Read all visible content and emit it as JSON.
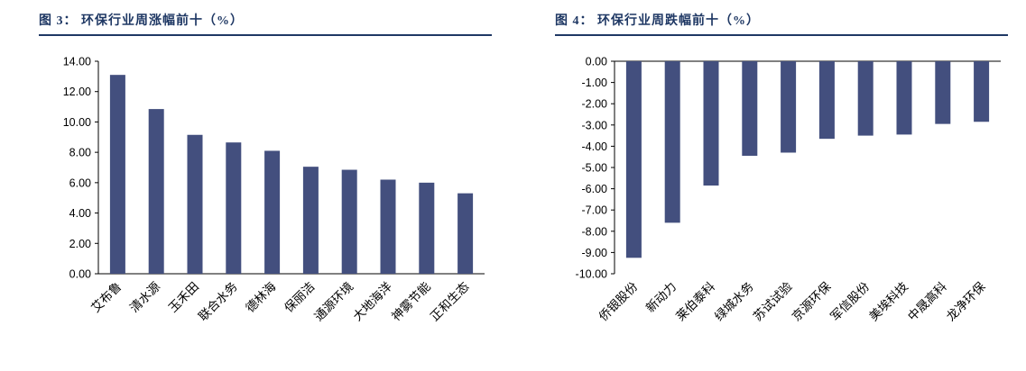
{
  "page": {
    "background": "#ffffff"
  },
  "colors": {
    "bar": "#434F7E",
    "title": "#1F3864",
    "rule": "#1F3864",
    "axis": "#000000",
    "label": "#000000"
  },
  "chart_data": [
    {
      "type": "bar",
      "title": "图 3： 环保行业周涨幅前十（%）",
      "categories": [
        "艾布鲁",
        "清水源",
        "玉禾田",
        "联合水务",
        "德林海",
        "保丽洁",
        "通源环境",
        "大地海洋",
        "神雾节能",
        "正和生态"
      ],
      "values": [
        13.1,
        10.85,
        9.15,
        8.65,
        8.1,
        7.05,
        6.85,
        6.2,
        6.0,
        5.3
      ],
      "ylim": [
        0,
        14
      ],
      "ytick_step": 2,
      "ytick_labels": [
        "0.00",
        "2.00",
        "4.00",
        "6.00",
        "8.00",
        "10.00",
        "12.00",
        "14.00"
      ],
      "grid": false,
      "legend": "none",
      "xlabel": "",
      "ylabel": ""
    },
    {
      "type": "bar",
      "title": "图 4： 环保行业周跌幅前十（%）",
      "categories": [
        "侨银股份",
        "新动力",
        "莱伯泰科",
        "绿城水务",
        "苏试试验",
        "京源环保",
        "军信股份",
        "美埃科技",
        "中晟高科",
        "龙净环保"
      ],
      "values": [
        -9.25,
        -7.6,
        -5.85,
        -4.45,
        -4.3,
        -3.65,
        -3.5,
        -3.45,
        -2.95,
        -2.85
      ],
      "ylim": [
        -10,
        0
      ],
      "ytick_step": 1,
      "ytick_labels": [
        "0.00",
        "-1.00",
        "-2.00",
        "-3.00",
        "-4.00",
        "-5.00",
        "-6.00",
        "-7.00",
        "-8.00",
        "-9.00",
        "-10.00"
      ],
      "grid": false,
      "legend": "none",
      "xlabel": "",
      "ylabel": ""
    }
  ]
}
